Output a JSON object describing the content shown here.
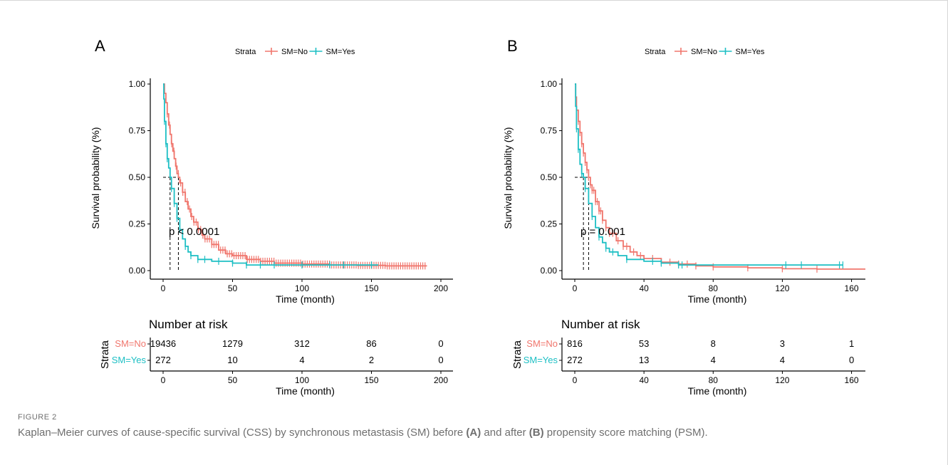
{
  "figure": {
    "label": "FIGURE 2",
    "caption": {
      "part1": "Kaplan–Meier curves of cause-specific survival (CSS) by synchronous metastasis (SM) before ",
      "a": "(A)",
      "part2": " and after ",
      "b": "(B)",
      "part3": " propensity score matching (PSM)."
    }
  },
  "colors": {
    "no": "#F0766D",
    "yes": "#1DBFC4",
    "axis": "#000000",
    "caption": "#6f6f6f"
  },
  "chart_data": [
    {
      "type": "line",
      "panel": "A",
      "legend": {
        "title": "Strata",
        "entries": [
          "SM=No",
          "SM=Yes"
        ],
        "position": "top"
      },
      "xlabel": "Time (month)",
      "ylabel": "Survival probability (%)",
      "xlim": [
        0,
        200
      ],
      "ylim": [
        0,
        1
      ],
      "xticks": [
        0,
        50,
        100,
        150,
        200
      ],
      "yticks": [
        0.0,
        0.25,
        0.5,
        0.75,
        1.0
      ],
      "pvalue": "p < 0.0001",
      "medians": [
        11,
        5
      ],
      "series": [
        {
          "name": "SM=No",
          "points": [
            [
              0,
              1
            ],
            [
              1,
              0.95
            ],
            [
              2,
              0.9
            ],
            [
              3,
              0.84
            ],
            [
              4,
              0.78
            ],
            [
              5,
              0.73
            ],
            [
              6,
              0.68
            ],
            [
              7,
              0.64
            ],
            [
              8,
              0.6
            ],
            [
              9,
              0.56
            ],
            [
              10,
              0.52
            ],
            [
              11,
              0.5
            ],
            [
              12,
              0.47
            ],
            [
              14,
              0.42
            ],
            [
              16,
              0.37
            ],
            [
              18,
              0.33
            ],
            [
              20,
              0.29
            ],
            [
              22,
              0.26
            ],
            [
              25,
              0.22
            ],
            [
              28,
              0.19
            ],
            [
              30,
              0.17
            ],
            [
              35,
              0.14
            ],
            [
              40,
              0.11
            ],
            [
              45,
              0.09
            ],
            [
              50,
              0.08
            ],
            [
              60,
              0.06
            ],
            [
              70,
              0.05
            ],
            [
              80,
              0.04
            ],
            [
              90,
              0.04
            ],
            [
              100,
              0.035
            ],
            [
              120,
              0.03
            ],
            [
              140,
              0.028
            ],
            [
              160,
              0.025
            ],
            [
              180,
              0.025
            ],
            [
              190,
              0.025
            ]
          ],
          "censor_from": 3,
          "censor_step": 1.6
        },
        {
          "name": "SM=Yes",
          "points": [
            [
              0,
              1
            ],
            [
              0.5,
              0.92
            ],
            [
              1,
              0.8
            ],
            [
              2,
              0.68
            ],
            [
              3,
              0.6
            ],
            [
              4,
              0.55
            ],
            [
              5,
              0.5
            ],
            [
              6,
              0.44
            ],
            [
              8,
              0.36
            ],
            [
              10,
              0.28
            ],
            [
              12,
              0.22
            ],
            [
              14,
              0.17
            ],
            [
              16,
              0.13
            ],
            [
              18,
              0.1
            ],
            [
              20,
              0.08
            ],
            [
              25,
              0.06
            ],
            [
              35,
              0.05
            ],
            [
              50,
              0.04
            ],
            [
              60,
              0.03
            ],
            [
              100,
              0.03
            ],
            [
              150,
              0.03
            ],
            [
              155,
              0.03
            ]
          ],
          "censors": [
            1,
            2,
            3,
            6,
            8,
            10,
            12,
            16,
            20,
            25,
            30,
            40,
            50,
            60,
            70,
            80,
            100,
            120,
            130,
            150
          ]
        }
      ],
      "risk_table": {
        "title": "Number at risk",
        "strata_label": "Strata",
        "rows": [
          {
            "name": "SM=No",
            "values": [
              "19436",
              "1279",
              "312",
              "86",
              "0"
            ]
          },
          {
            "name": "SM=Yes",
            "values": [
              "272",
              "10",
              "4",
              "2",
              "0"
            ]
          }
        ],
        "xlabel": "Time (month)"
      },
      "panel_label": "A"
    },
    {
      "type": "line",
      "panel": "B",
      "legend": {
        "title": "Strata",
        "entries": [
          "SM=No",
          "SM=Yes"
        ],
        "position": "top"
      },
      "xlabel": "Time (month)",
      "ylabel": "Survival probability (%)",
      "xlim": [
        0,
        168
      ],
      "ylim": [
        0,
        1
      ],
      "xticks": [
        0,
        40,
        80,
        120,
        160
      ],
      "yticks": [
        0.0,
        0.25,
        0.5,
        0.75,
        1.0
      ],
      "pvalue": "p = 0.001",
      "medians": [
        8,
        5
      ],
      "series": [
        {
          "name": "SM=No",
          "points": [
            [
              0,
              1
            ],
            [
              0.5,
              0.93
            ],
            [
              1,
              0.86
            ],
            [
              2,
              0.8
            ],
            [
              3,
              0.74
            ],
            [
              4,
              0.68
            ],
            [
              5,
              0.63
            ],
            [
              6,
              0.58
            ],
            [
              7,
              0.54
            ],
            [
              8,
              0.5
            ],
            [
              9,
              0.46
            ],
            [
              10,
              0.43
            ],
            [
              12,
              0.37
            ],
            [
              14,
              0.32
            ],
            [
              16,
              0.27
            ],
            [
              18,
              0.23
            ],
            [
              20,
              0.2
            ],
            [
              24,
              0.16
            ],
            [
              28,
              0.13
            ],
            [
              32,
              0.1
            ],
            [
              36,
              0.08
            ],
            [
              40,
              0.065
            ],
            [
              50,
              0.045
            ],
            [
              60,
              0.035
            ],
            [
              70,
              0.025
            ],
            [
              80,
              0.02
            ],
            [
              100,
              0.015
            ],
            [
              120,
              0.01
            ],
            [
              140,
              0.008
            ],
            [
              168,
              0.008
            ]
          ],
          "censors": [
            1,
            2,
            3,
            4,
            5,
            6,
            7,
            8,
            9,
            10,
            11,
            12,
            13,
            14,
            15,
            16,
            18,
            20,
            22,
            25,
            28,
            30,
            34,
            38,
            45,
            50,
            55,
            60,
            65,
            70,
            80,
            100,
            120,
            140
          ]
        },
        {
          "name": "SM=Yes",
          "points": [
            [
              0,
              1
            ],
            [
              0.5,
              0.88
            ],
            [
              1,
              0.76
            ],
            [
              2,
              0.65
            ],
            [
              3,
              0.57
            ],
            [
              4,
              0.52
            ],
            [
              5,
              0.5
            ],
            [
              6,
              0.44
            ],
            [
              8,
              0.36
            ],
            [
              10,
              0.29
            ],
            [
              12,
              0.23
            ],
            [
              14,
              0.18
            ],
            [
              16,
              0.15
            ],
            [
              18,
              0.12
            ],
            [
              20,
              0.1
            ],
            [
              25,
              0.08
            ],
            [
              30,
              0.06
            ],
            [
              40,
              0.05
            ],
            [
              50,
              0.04
            ],
            [
              60,
              0.03
            ],
            [
              155,
              0.03
            ]
          ],
          "censors": [
            1,
            2,
            4,
            6,
            10,
            14,
            18,
            22,
            30,
            45,
            50,
            60,
            62,
            122,
            131,
            153,
            155
          ]
        }
      ],
      "risk_table": {
        "title": "Number at risk",
        "strata_label": "Strata",
        "rows": [
          {
            "name": "SM=No",
            "values": [
              "816",
              "53",
              "8",
              "3",
              "1"
            ]
          },
          {
            "name": "SM=Yes",
            "values": [
              "272",
              "13",
              "4",
              "4",
              "0"
            ]
          }
        ],
        "xlabel": "Time (month)"
      },
      "panel_label": "B"
    }
  ]
}
